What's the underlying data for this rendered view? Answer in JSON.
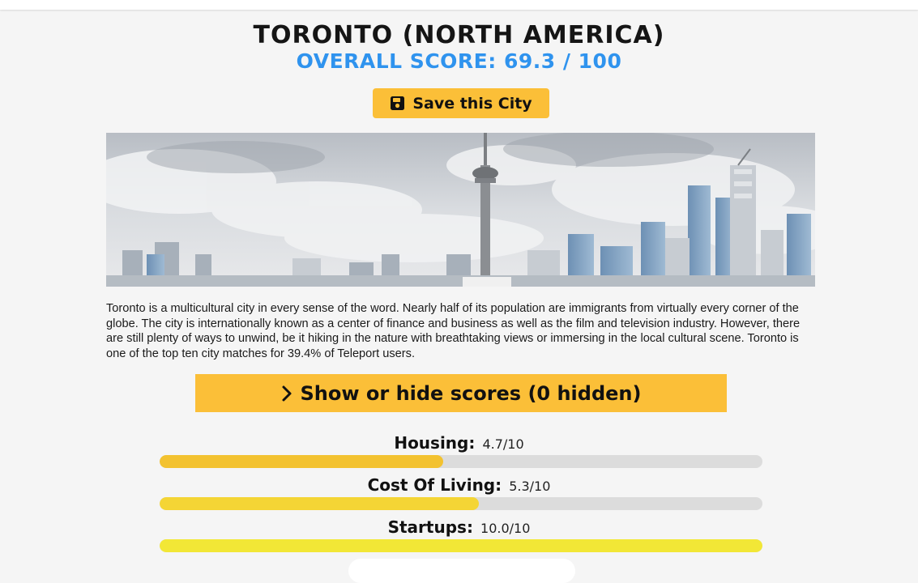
{
  "page": {
    "title": "TORONTO (NORTH AMERICA)",
    "overall_score": "OVERALL SCORE: 69.3 / 100"
  },
  "save_button": {
    "label": "Save this City",
    "icon": "floppy-disk-icon"
  },
  "hero_image": {
    "subject": "toronto-skyline"
  },
  "description": "Toronto is a multicultural city in every sense of the word. Nearly half of its population are immigrants from virtually every corner of the globe. The city is internationally known as a center of finance and business as well as the film and television industry. However, there are still plenty of ways to unwind, be it hiking in the nature with breathtaking views or immersing in the local cultural scene. Toronto is one of the top ten city matches for 39.4% of Teleport users.",
  "toggle_button": {
    "label": "Show or hide scores (0 hidden)",
    "icon": "chevron-right-icon"
  },
  "scores": [
    {
      "name": "Housing:",
      "value_text": "4.7/10",
      "value": 4.7,
      "color": "#f3c230"
    },
    {
      "name": "Cost Of Living:",
      "value_text": "5.3/10",
      "value": 5.3,
      "color": "#f4d535"
    },
    {
      "name": "Startups:",
      "value_text": "10.0/10",
      "value": 10.0,
      "color": "#f2e736"
    }
  ],
  "colors": {
    "accent": "#fbbf38",
    "score_blue": "#2f93ee",
    "track": "#dcdcdc"
  }
}
